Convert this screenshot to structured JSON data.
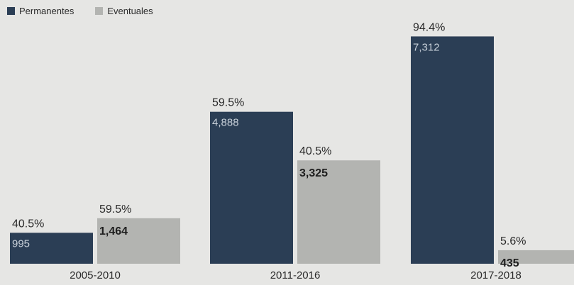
{
  "chart_data": {
    "type": "bar",
    "categories": [
      "2005-2010",
      "2011-2016",
      "2017-2018"
    ],
    "series": [
      {
        "name": "Permanentes",
        "color": "#2b3e55",
        "values": [
          995,
          4888,
          7312
        ],
        "value_labels": [
          "995",
          "4,888",
          "7,312"
        ],
        "pct_labels": [
          "40.5%",
          "59.5%",
          "94.4%"
        ]
      },
      {
        "name": "Eventuales",
        "color": "#b3b4b1",
        "values": [
          1464,
          3325,
          435
        ],
        "value_labels": [
          "1,464",
          "3,325",
          "435"
        ],
        "pct_labels": [
          "59.5%",
          "40.5%",
          "5.6%"
        ]
      }
    ],
    "title": "",
    "xlabel": "",
    "ylabel": "",
    "ylim": [
      0,
      7800
    ],
    "grid": false,
    "legend": "top-left"
  }
}
